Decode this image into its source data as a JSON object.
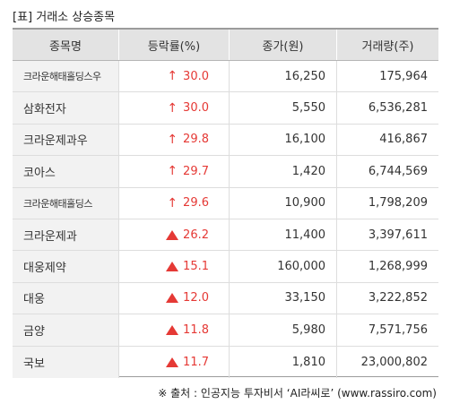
{
  "title": "[표] 거래소 상승종목",
  "table": {
    "headers": [
      "종목명",
      "등락률(%)",
      "종가(원)",
      "거래량(주)"
    ],
    "rows": [
      {
        "name": "크라운해태홀딩스우",
        "change": "30.0",
        "icon": "up-arrow-icon",
        "price": "16,250",
        "volume": "175,964"
      },
      {
        "name": "삼화전자",
        "change": "30.0",
        "icon": "up-arrow-icon",
        "price": "5,550",
        "volume": "6,536,281"
      },
      {
        "name": "크라운제과우",
        "change": "29.8",
        "icon": "up-arrow-icon",
        "price": "16,100",
        "volume": "416,867"
      },
      {
        "name": "코아스",
        "change": "29.7",
        "icon": "up-arrow-icon",
        "price": "1,420",
        "volume": "6,744,569"
      },
      {
        "name": "크라운해태홀딩스",
        "change": "29.6",
        "icon": "up-arrow-icon",
        "price": "10,900",
        "volume": "1,798,209"
      },
      {
        "name": "크라운제과",
        "change": "26.2",
        "icon": "up-triangle-icon",
        "price": "11,400",
        "volume": "3,397,611"
      },
      {
        "name": "대웅제약",
        "change": "15.1",
        "icon": "up-triangle-icon",
        "price": "160,000",
        "volume": "1,268,999"
      },
      {
        "name": "대웅",
        "change": "12.0",
        "icon": "up-triangle-icon",
        "price": "33,150",
        "volume": "3,222,852"
      },
      {
        "name": "금양",
        "change": "11.8",
        "icon": "up-triangle-icon",
        "price": "5,980",
        "volume": "7,571,756"
      },
      {
        "name": "국보",
        "change": "11.7",
        "icon": "up-triangle-icon",
        "price": "1,810",
        "volume": "23,000,802"
      }
    ]
  },
  "footer": "※ 출처 : 인공지능 투자비서 ‘AI라씨로’ (www.rassiro.com)",
  "colors": {
    "rise": "#e53935",
    "header_bg": "#e3e3e3",
    "name_bg": "#f2f2f2"
  }
}
